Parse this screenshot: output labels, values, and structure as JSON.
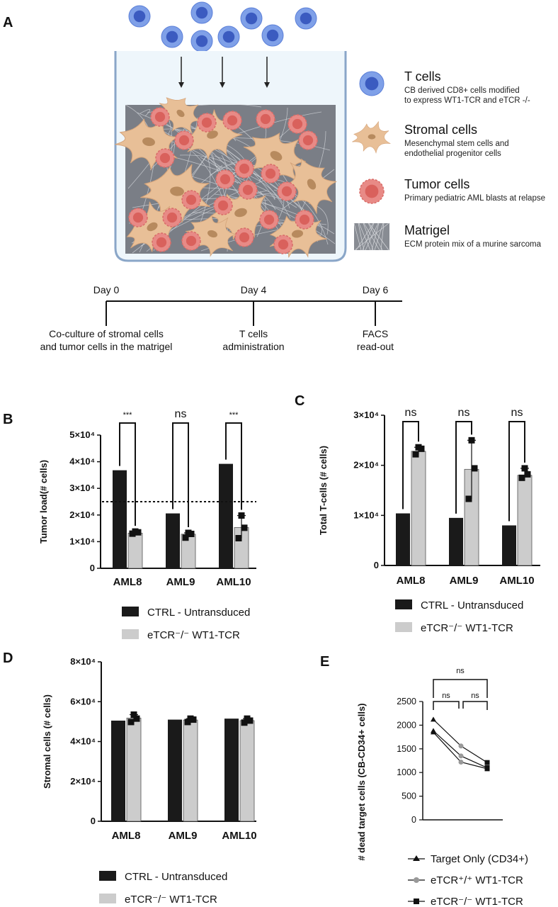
{
  "panelA": {
    "letter": "A",
    "legend": [
      {
        "key": "tcell",
        "title": "T cells",
        "sub1": "CB derived CD8+ cells modified",
        "sub2": "to express WT1-TCR and eTCR -/-"
      },
      {
        "key": "stromal",
        "title": "Stromal cells",
        "sub1": "Mesenchymal stem cells and",
        "sub2": "endothelial progenitor cells"
      },
      {
        "key": "tumor",
        "title": "Tumor cells",
        "sub1": "Primary pediatric AML blasts at relapse",
        "sub2": ""
      },
      {
        "key": "matrigel",
        "title": "Matrigel",
        "sub1": "ECM protein mix of a murine sarcoma",
        "sub2": ""
      }
    ],
    "timeline": [
      {
        "day": "Day  0",
        "line1": "Co-culture of stromal cells",
        "line2": "and tumor cells in the matrigel"
      },
      {
        "day": "Day 4",
        "line1": "T cells",
        "line2": "administration"
      },
      {
        "day": "Day 6",
        "line1": "FACS",
        "line2": "read-out"
      }
    ]
  },
  "chart_data": [
    {
      "panel": "B",
      "type": "bar",
      "categories": [
        "AML8",
        "AML9",
        "AML10"
      ],
      "ylabel": "Tumor load(# cells)",
      "ylim": [
        0,
        50000
      ],
      "yticks": [
        "0",
        "1×10⁴",
        "2×10⁴",
        "3×10⁴",
        "4×10⁴",
        "5×10⁴"
      ],
      "reference_line": 25000,
      "series": [
        {
          "name": "CTRL - Untransduced",
          "color": "#1a1a1a",
          "values": [
            36800,
            20600,
            39200
          ]
        },
        {
          "name": "eTCR⁻/⁻ WT1-TCR",
          "color": "#cccccc",
          "values": [
            13200,
            12800,
            15300
          ],
          "points": [
            [
              13000,
              13500,
              13800
            ],
            [
              11500,
              12900,
              13300
            ],
            [
              11300,
              15200,
              19800
            ]
          ]
        }
      ],
      "significance": [
        "***",
        "ns",
        "***"
      ]
    },
    {
      "panel": "C",
      "type": "bar",
      "categories": [
        "AML8",
        "AML9",
        "AML10"
      ],
      "ylabel": "Total T-cells (# cells)",
      "ylim": [
        0,
        30000
      ],
      "yticks": [
        "0",
        "1×10⁴",
        "2×10⁴",
        "3×10⁴"
      ],
      "series": [
        {
          "name": "CTRL - Untransduced",
          "color": "#1a1a1a",
          "values": [
            10400,
            9500,
            8000
          ]
        },
        {
          "name": "eTCR⁻/⁻ WT1-TCR",
          "color": "#cccccc",
          "values": [
            22800,
            19200,
            18000
          ],
          "points": [
            [
              22200,
              23300,
              23600
            ],
            [
              13300,
              19400,
              25000
            ],
            [
              17500,
              18200,
              19400
            ]
          ]
        }
      ],
      "significance": [
        "ns",
        "ns",
        "ns"
      ]
    },
    {
      "panel": "D",
      "type": "bar",
      "categories": [
        "AML8",
        "AML9",
        "AML10"
      ],
      "ylabel": "Stromal cells (# cells)",
      "ylim": [
        0,
        80000
      ],
      "yticks": [
        "0",
        "2×10⁴",
        "4×10⁴",
        "6×10⁴",
        "8×10⁴"
      ],
      "series": [
        {
          "name": "CTRL - Untransduced",
          "color": "#1a1a1a",
          "values": [
            50500,
            51000,
            51500
          ]
        },
        {
          "name": "eTCR⁻/⁻ WT1-TCR",
          "color": "#cccccc",
          "values": [
            51800,
            50800,
            50500
          ],
          "points": [
            [
              49800,
              51500,
              53500
            ],
            [
              49800,
              51000,
              51500
            ],
            [
              49500,
              50500,
              51500
            ]
          ]
        }
      ]
    },
    {
      "panel": "E",
      "type": "line",
      "ylabel": "# dead target cells (CB-CD34+ cells)",
      "ylim": [
        0,
        2500
      ],
      "yticks": [
        "0",
        "500",
        "1000",
        "1500",
        "2000",
        "2500"
      ],
      "series": [
        {
          "name": "Target Only (CD34+)",
          "marker": "triangle",
          "values": [
            1850,
            1220,
            1080
          ]
        },
        {
          "name": "eTCR⁺/⁺ WT1-TCR",
          "marker": "circle",
          "values": [
            2120,
            1560,
            1210
          ]
        },
        {
          "name": "eTCR⁻/⁻ WT1-TCR",
          "marker": "square",
          "values": [
            1880,
            1350,
            1100
          ]
        }
      ],
      "significance": [
        "ns",
        "ns",
        "ns"
      ]
    }
  ]
}
